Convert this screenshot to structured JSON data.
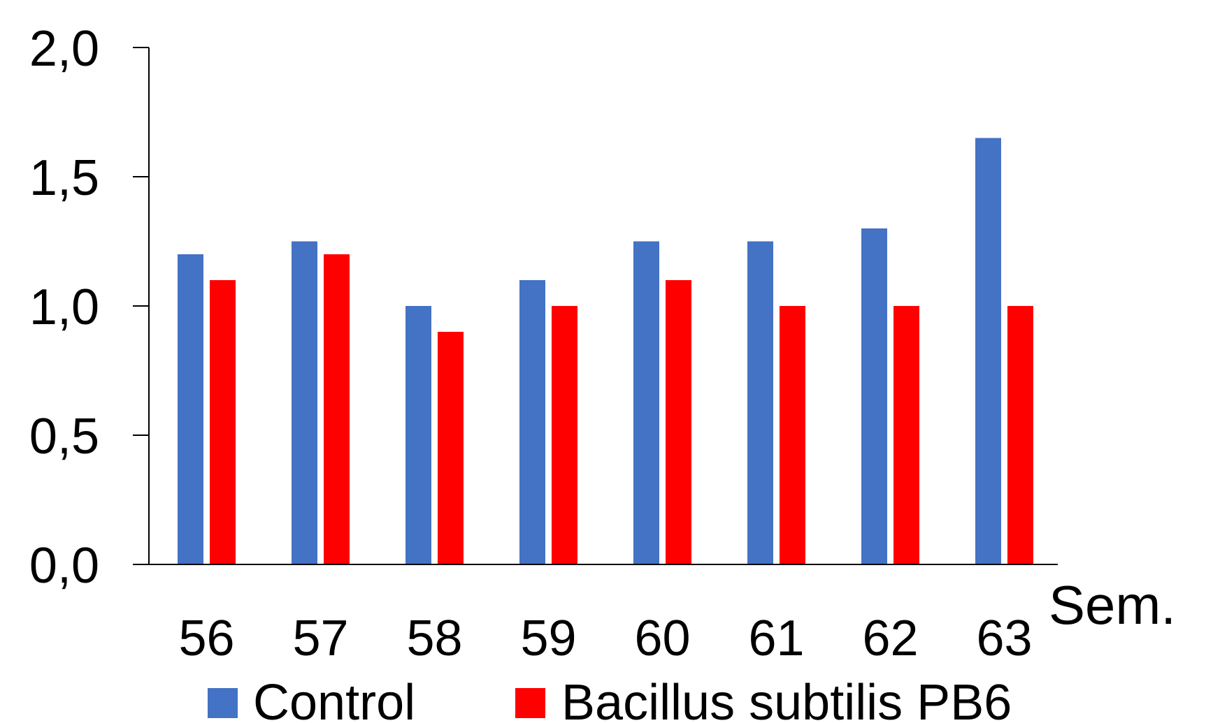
{
  "chart_data": {
    "type": "bar",
    "categories": [
      "56",
      "57",
      "58",
      "59",
      "60",
      "61",
      "62",
      "63"
    ],
    "series": [
      {
        "name": "Control",
        "color": "#4472C4",
        "values": [
          1.2,
          1.25,
          1.0,
          1.1,
          1.25,
          1.25,
          1.3,
          1.65
        ]
      },
      {
        "name": "Bacillus subtilis PB6",
        "color": "#FF0000",
        "values": [
          1.1,
          1.2,
          0.9,
          1.0,
          1.1,
          1.0,
          1.0,
          1.0
        ]
      }
    ],
    "ylim": [
      0,
      2
    ],
    "yticks": [
      "0,0",
      "0,5",
      "1,0",
      "1,5",
      "2,0"
    ],
    "ytick_values": [
      0,
      0.5,
      1.0,
      1.5,
      2.0
    ],
    "xlabel": "Sem.",
    "ylabel": "",
    "title": "",
    "grid": false,
    "legend_position": "bottom"
  }
}
